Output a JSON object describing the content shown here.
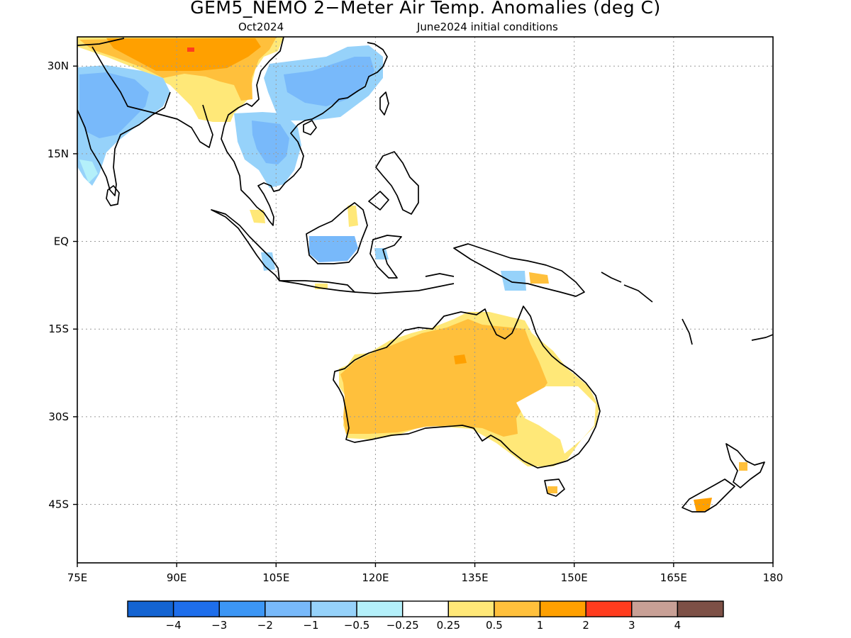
{
  "title": "GEM5_NEMO 2−Meter Air Temp. Anomalies (deg C)",
  "subtitle_left": "Oct2024",
  "subtitle_right": "June2024 initial conditions",
  "map": {
    "lon_range": [
      75,
      180
    ],
    "lat_range": [
      -55,
      35
    ],
    "lon_ticks": [
      {
        "value": 75,
        "label": "75E"
      },
      {
        "value": 90,
        "label": "90E"
      },
      {
        "value": 105,
        "label": "105E"
      },
      {
        "value": 120,
        "label": "120E"
      },
      {
        "value": 135,
        "label": "135E"
      },
      {
        "value": 150,
        "label": "150E"
      },
      {
        "value": 165,
        "label": "165E"
      },
      {
        "value": 180,
        "label": "180"
      }
    ],
    "lat_ticks": [
      {
        "value": 30,
        "label": "30N"
      },
      {
        "value": 15,
        "label": "15N"
      },
      {
        "value": 0,
        "label": "EQ"
      },
      {
        "value": -15,
        "label": "15S"
      },
      {
        "value": -30,
        "label": "30S"
      },
      {
        "value": -45,
        "label": "45S"
      }
    ],
    "grid": "dotted"
  },
  "colorbar": {
    "colors": [
      "#1464d2",
      "#1e6eeb",
      "#3c96f5",
      "#78b9fa",
      "#96d2fa",
      "#b4f0fa",
      "#ffffff",
      "#ffe878",
      "#ffc03c",
      "#ffa000",
      "#ff3c1e",
      "#c8a096",
      "#7d5046"
    ],
    "labels": [
      "−4",
      "−3",
      "−2",
      "−1",
      "−0.5",
      "−0.25",
      "0.25",
      "0.5",
      "1",
      "2",
      "3",
      "4"
    ]
  },
  "anomaly_regions": [
    {
      "region": "China / Tibet",
      "level": "1 to 2"
    },
    {
      "region": "Eastern China",
      "level": "-1 to -0.5"
    },
    {
      "region": "Indian subcontinent",
      "level": "-2 to -0.5"
    },
    {
      "region": "Indochina",
      "level": "-1 to -0.25"
    },
    {
      "region": "Borneo",
      "level": "-1 to -0.5"
    },
    {
      "region": "Northern / Central Australia",
      "level": "1 to 2"
    },
    {
      "region": "South-eastern Australia",
      "level": "0.25 to 1"
    },
    {
      "region": "New Zealand South Island",
      "level": "1 to 2"
    }
  ]
}
